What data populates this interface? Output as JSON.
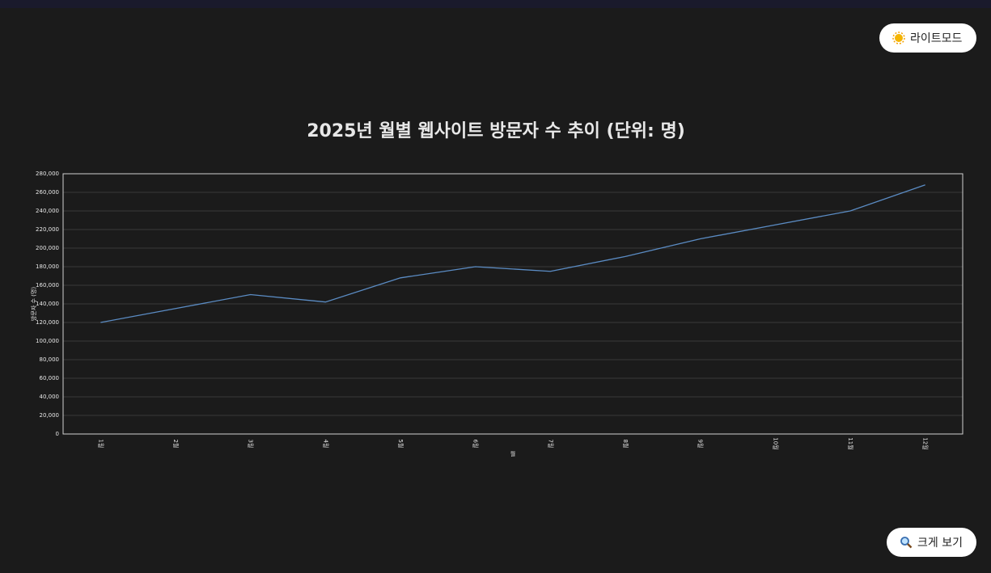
{
  "chart_data": {
    "type": "line",
    "title": "2025년 월별 웹사이트 방문자 수 추이 (단위: 명)",
    "x_label": "월",
    "y_label": "방문자 수 (명)",
    "categories": [
      "1월",
      "2월",
      "3월",
      "4월",
      "5월",
      "6월",
      "7월",
      "8월",
      "9월",
      "10월",
      "11월",
      "12월"
    ],
    "series": [
      {
        "name": "방문자 수",
        "color": "#5b8cc4",
        "values": [
          120000,
          135000,
          150000,
          142000,
          168000,
          180000,
          175000,
          191000,
          210000,
          225000,
          240000,
          268000
        ]
      }
    ],
    "ylim": [
      0,
      280000
    ],
    "yticks": [
      0,
      {
        "value": 20000,
        "label": "20,000"
      },
      {
        "value": 40000,
        "label": "40,000"
      },
      {
        "value": 60000,
        "label": "60,000"
      },
      {
        "value": 80000,
        "label": "80,000"
      },
      {
        "value": 100000,
        "label": "100,000"
      },
      {
        "value": 120000,
        "label": "120,000"
      },
      {
        "value": 140000,
        "label": "140,000"
      },
      {
        "value": 160000,
        "label": "160,000"
      },
      {
        "value": 180000,
        "label": "180,000"
      },
      {
        "value": 200000,
        "label": "200,000"
      },
      {
        "value": 220000,
        "label": "220,000"
      },
      {
        "value": 240000,
        "label": "240,000"
      },
      {
        "value": 260000,
        "label": "260,000"
      },
      {
        "value": 280000,
        "label": "280,000"
      }
    ],
    "grid": true
  },
  "buttons": {
    "theme": "라이트모드",
    "zoom": "크게 보기"
  }
}
